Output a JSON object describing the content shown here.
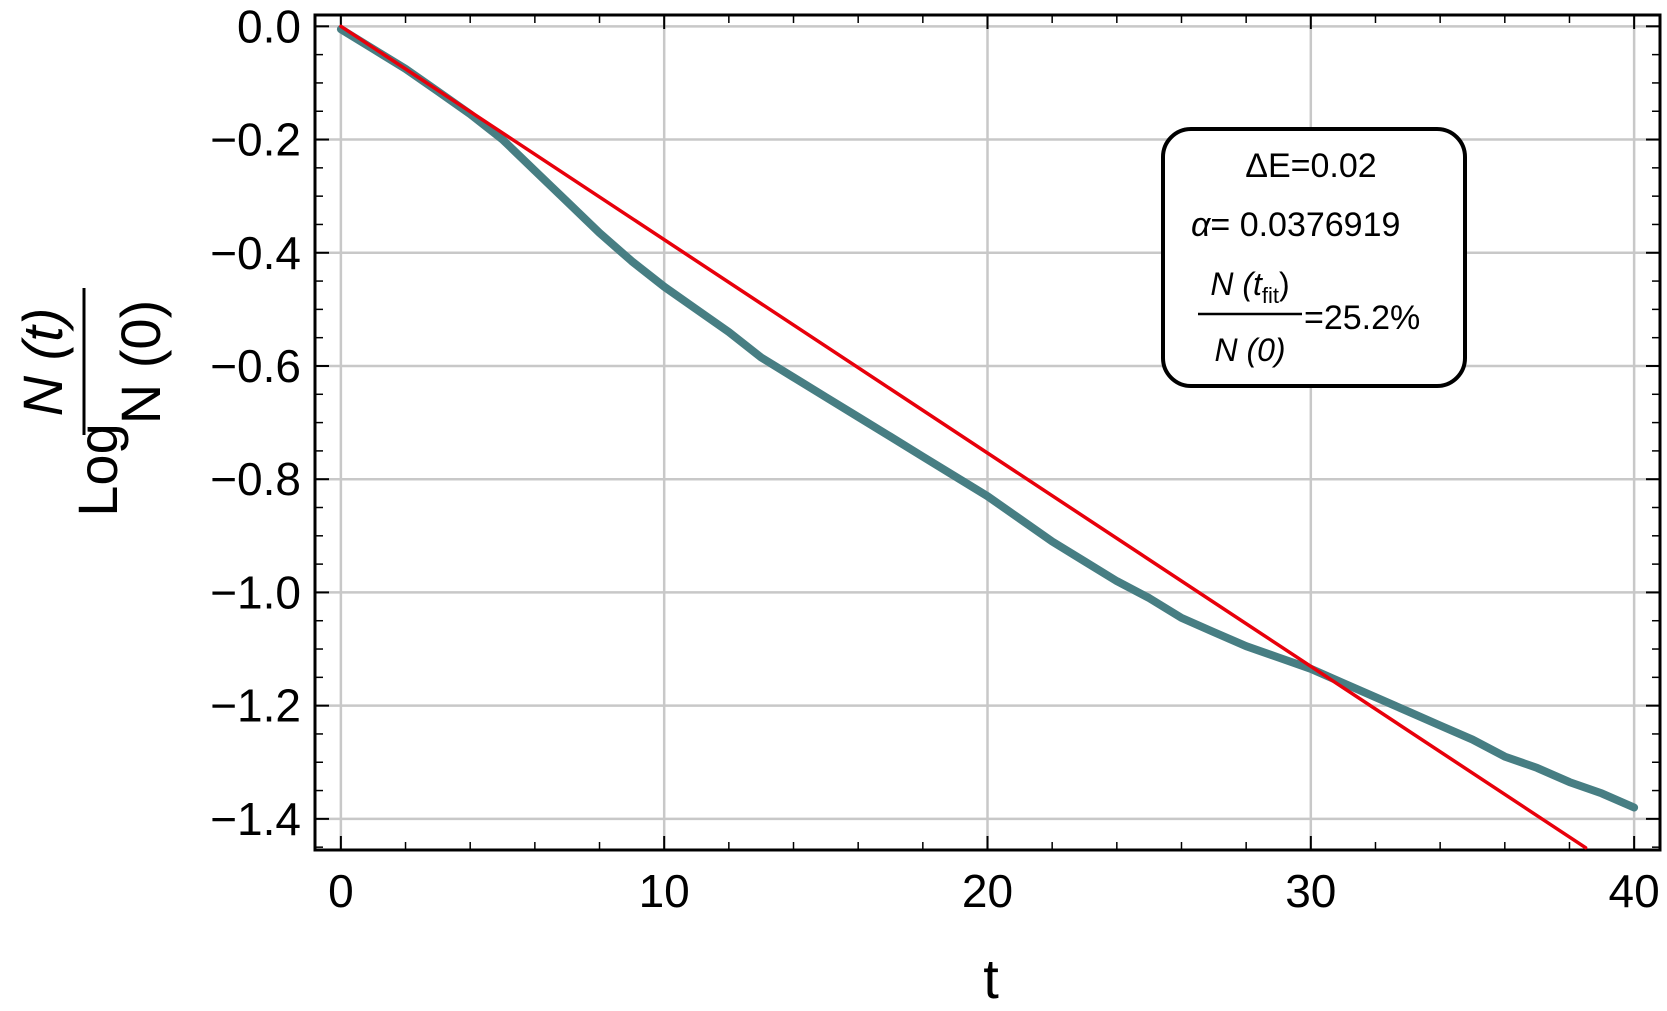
{
  "chart_data": {
    "type": "line",
    "title": "",
    "xlabel": "t",
    "ylabel": {
      "prefix": "Log",
      "numerator": "N (t)",
      "denominator": "N (0)"
    },
    "xlim": [
      -0.8,
      40.8
    ],
    "ylim": [
      -1.455,
      0.02
    ],
    "x_ticks": [
      0,
      10,
      20,
      30,
      40
    ],
    "x_tick_labels": [
      "0",
      "10",
      "20",
      "30",
      "40"
    ],
    "y_ticks": [
      0.0,
      -0.2,
      -0.4,
      -0.6,
      -0.8,
      -1.0,
      -1.2,
      -1.4
    ],
    "y_tick_labels": [
      "0.0",
      "−0.2",
      "−0.4",
      "−0.6",
      "−0.8",
      "−1.0",
      "−1.2",
      "−1.4"
    ],
    "grid": true,
    "legend": "top-right",
    "series": [
      {
        "color": "#477e83",
        "x": [
          0,
          1,
          2,
          3,
          4,
          5,
          6,
          7,
          8,
          9,
          10,
          11,
          12,
          13,
          14,
          15,
          16,
          17,
          18,
          19,
          20,
          21,
          22,
          23,
          24,
          25,
          26,
          27,
          28,
          29,
          30,
          31,
          32,
          33,
          34,
          35,
          36,
          37,
          38,
          39,
          40
        ],
        "y": [
          -0.005,
          -0.04,
          -0.075,
          -0.115,
          -0.155,
          -0.2,
          -0.255,
          -0.31,
          -0.365,
          -0.415,
          -0.46,
          -0.5,
          -0.54,
          -0.585,
          -0.62,
          -0.655,
          -0.69,
          -0.725,
          -0.76,
          -0.795,
          -0.83,
          -0.87,
          -0.91,
          -0.945,
          -0.98,
          -1.01,
          -1.045,
          -1.07,
          -1.095,
          -1.115,
          -1.135,
          -1.16,
          -1.185,
          -1.21,
          -1.235,
          -1.26,
          -1.29,
          -1.31,
          -1.335,
          -1.355,
          -1.38
        ]
      },
      {
        "color": "#e8000b",
        "x": [
          0,
          38.5
        ],
        "y": [
          0.0,
          -1.451
        ]
      }
    ],
    "annotation": {
      "line1": "ΔE=0.02",
      "alpha_symbol": "α",
      "alpha_value": "= 0.0376919",
      "frac_num_pre": "N (t",
      "frac_num_sub": "fit",
      "frac_num_post": ")",
      "frac_den": "N (0)",
      "frac_value": "=25.2%"
    }
  }
}
